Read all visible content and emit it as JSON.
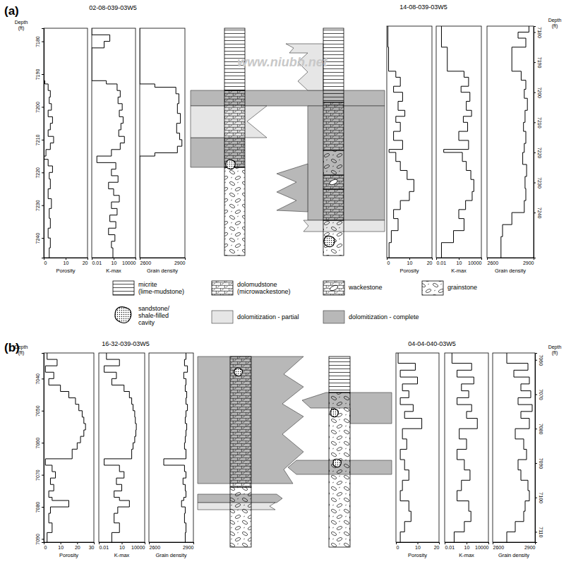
{
  "panels": [
    {
      "label": "(a)",
      "wells": [
        "02-08-039-03W5",
        "14-08-039-03W5"
      ]
    },
    {
      "label": "(b)",
      "wells": [
        "16-32-039-03W5",
        "04-04-040-03W5"
      ]
    }
  ],
  "watermark": "www.niubb.net",
  "legend": [
    {
      "label": [
        "micrite",
        "(lime-mudstone)"
      ]
    },
    {
      "label": [
        "dolomudstone",
        "(microwackestone)"
      ]
    },
    {
      "label": [
        "wackestone"
      ]
    },
    {
      "label": [
        "grainstone"
      ]
    },
    {
      "label": [
        "sandstone/",
        "shale-filled",
        "cavity"
      ]
    },
    {
      "label": [
        "dolomitization - partial"
      ]
    },
    {
      "label": [
        "dolomitization - complete"
      ]
    }
  ],
  "chart_data": [
    {
      "type": "step",
      "xlabel": "Porosity",
      "ylabel": [
        "Depth",
        "(ft)"
      ],
      "x": [
        0.2,
        0.5,
        2,
        3,
        2.5,
        3.5,
        2,
        4,
        3,
        2,
        4.5,
        3,
        1,
        0.2,
        2,
        4,
        2.5,
        3,
        2,
        3.5,
        2.5,
        3,
        2,
        3,
        2.5,
        2.5
      ],
      "y": [
        7176,
        7192,
        7193,
        7195,
        7197,
        7199,
        7201,
        7203,
        7205,
        7207,
        7209,
        7211,
        7213,
        7215,
        7216,
        7218,
        7220,
        7222,
        7225,
        7228,
        7231,
        7234,
        7237,
        7240,
        7243,
        7246
      ],
      "xlim": [
        0,
        20
      ],
      "xticks": [
        0,
        10,
        20
      ],
      "ylim": [
        7176,
        7246
      ],
      "yticks": [
        7180,
        7190,
        7200,
        7210,
        7220,
        7230,
        7240
      ]
    },
    {
      "type": "step",
      "xlabel": "K-max",
      "log": "x",
      "tick_labels": "x",
      "x": [
        0.01,
        3,
        0.5,
        0.01,
        1,
        30,
        80,
        40,
        150,
        60,
        200,
        100,
        50,
        300,
        80,
        5,
        0.05,
        20,
        5,
        40,
        2,
        10,
        60,
        5,
        30,
        3,
        20,
        2,
        15,
        5,
        8,
        8
      ],
      "y": [
        7176,
        7178,
        7180,
        7182,
        7192,
        7193,
        7195,
        7197,
        7199,
        7201,
        7203,
        7205,
        7207,
        7209,
        7211,
        7213,
        7215,
        7217,
        7219,
        7221,
        7223,
        7225,
        7227,
        7229,
        7231,
        7233,
        7235,
        7237,
        7239,
        7241,
        7243,
        7246
      ],
      "xlim": [
        0.01,
        10000
      ],
      "xticks": [
        0.01,
        10,
        10000
      ],
      "ylim": [
        7176,
        7246
      ]
    },
    {
      "type": "step",
      "xlabel": "Grain density",
      "tick_labels": "x",
      "x": [
        2600,
        2700,
        2840,
        2860,
        2850,
        2870,
        2845,
        2865,
        2880,
        2850,
        2700,
        2600,
        2600
      ],
      "y": [
        7176,
        7193,
        7194,
        7196,
        7199,
        7202,
        7205,
        7208,
        7210,
        7212,
        7214,
        7215,
        7246
      ],
      "xlim": [
        2600,
        2900
      ],
      "xticks": [
        2600,
        2900
      ],
      "ylim": [
        7176,
        7246
      ]
    },
    {
      "type": "step",
      "xlabel": "Porosity",
      "tick_labels": "x",
      "x": [
        0.5,
        0.8,
        4,
        6,
        3,
        7,
        5,
        8,
        4,
        6,
        3,
        7,
        1,
        4,
        6,
        9,
        12,
        10,
        6,
        3,
        5,
        2,
        1,
        1
      ],
      "y": [
        7178,
        7185,
        7193,
        7195,
        7198,
        7200,
        7203,
        7206,
        7208,
        7210,
        7213,
        7216,
        7219,
        7220,
        7223,
        7226,
        7229,
        7233,
        7236,
        7239,
        7242,
        7246,
        7250,
        7255
      ],
      "xlim": [
        0,
        20
      ],
      "xticks": [
        0,
        10,
        20
      ],
      "ylim": [
        7178,
        7255
      ]
    },
    {
      "type": "step",
      "xlabel": "K-max",
      "log": "x",
      "tick_labels": "x",
      "x": [
        0.05,
        0.3,
        50,
        200,
        20,
        300,
        100,
        500,
        40,
        150,
        10,
        200,
        0.1,
        30,
        100,
        400,
        1000,
        600,
        80,
        10,
        50,
        2,
        0.05,
        0.05
      ],
      "y": [
        7178,
        7185,
        7193,
        7195,
        7198,
        7200,
        7203,
        7206,
        7208,
        7210,
        7213,
        7216,
        7219,
        7220,
        7223,
        7226,
        7229,
        7233,
        7236,
        7239,
        7242,
        7246,
        7250,
        7255
      ],
      "xlim": [
        0.01,
        10000
      ],
      "xticks": [
        0.01,
        10,
        10000
      ],
      "ylim": [
        7178,
        7255
      ]
    },
    {
      "type": "step",
      "xlabel": "Grain density",
      "ylabel": [
        "Depth",
        "(ft)"
      ],
      "x": [
        2870,
        2800,
        2850,
        2760,
        2820,
        2850,
        2840,
        2860,
        2845,
        2835,
        2850,
        2840,
        2830,
        2855,
        2845,
        2850,
        2840,
        2760,
        2700,
        2690,
        2690
      ],
      "y": [
        7178,
        7180,
        7182,
        7185,
        7193,
        7196,
        7199,
        7202,
        7206,
        7210,
        7213,
        7217,
        7220,
        7224,
        7228,
        7232,
        7236,
        7240,
        7244,
        7248,
        7255
      ],
      "xlim": [
        2600,
        2900
      ],
      "xticks": [
        2600,
        2900
      ],
      "ylim": [
        7178,
        7255
      ],
      "yticks": [
        7180,
        7190,
        7200,
        7210,
        7220,
        7230,
        7240
      ]
    },
    {
      "type": "step",
      "xlabel": "Porosity",
      "ylabel": [
        "Depth",
        "(ft)"
      ],
      "x": [
        2,
        8,
        1,
        6,
        3,
        10,
        15,
        19,
        21,
        23,
        24,
        25,
        24,
        22,
        20,
        17,
        1,
        5,
        7,
        4,
        6,
        3,
        5,
        15,
        4,
        3,
        5,
        2,
        2
      ],
      "y": [
        7032,
        7034,
        7036,
        7038,
        7040,
        7042,
        7044,
        7046,
        7048,
        7050,
        7052,
        7054,
        7056,
        7058,
        7060,
        7062,
        7065,
        7067,
        7069,
        7071,
        7073,
        7075,
        7077,
        7078,
        7080,
        7082,
        7085,
        7088,
        7091
      ],
      "xlim": [
        0,
        30
      ],
      "xticks": [
        0,
        10,
        20,
        30
      ],
      "ylim": [
        7032,
        7091
      ],
      "yticks": [
        7040,
        7050,
        7060,
        7070,
        7080,
        7090
      ]
    },
    {
      "type": "step",
      "xlabel": "K-max",
      "log": "x",
      "tick_labels": "x",
      "x": [
        0.1,
        5,
        0.05,
        2,
        0.5,
        20,
        100,
        200,
        300,
        500,
        600,
        800,
        700,
        500,
        300,
        200,
        0.05,
        5,
        20,
        2,
        10,
        1,
        5,
        100,
        3,
        1,
        5,
        0.5,
        0.5
      ],
      "y": [
        7032,
        7034,
        7036,
        7038,
        7040,
        7042,
        7044,
        7046,
        7048,
        7050,
        7052,
        7054,
        7056,
        7058,
        7060,
        7062,
        7065,
        7067,
        7069,
        7071,
        7073,
        7075,
        7077,
        7078,
        7080,
        7082,
        7085,
        7088,
        7091
      ],
      "xlim": [
        0.01,
        10000
      ],
      "xticks": [
        0.01,
        10,
        10000
      ],
      "ylim": [
        7032,
        7091
      ]
    },
    {
      "type": "step",
      "xlabel": "Grain density",
      "tick_labels": "x",
      "x": [
        2850,
        2840,
        2860,
        2835,
        2850,
        2845,
        2855,
        2850,
        2860,
        2850,
        2845,
        2855,
        2850,
        2845,
        2840,
        2850,
        2700,
        2840,
        2850,
        2830,
        2845,
        2850,
        2835,
        2820,
        2845,
        2840,
        2850,
        2845,
        2845
      ],
      "y": [
        7032,
        7034,
        7036,
        7038,
        7040,
        7042,
        7044,
        7046,
        7048,
        7050,
        7052,
        7054,
        7056,
        7058,
        7060,
        7062,
        7065,
        7067,
        7069,
        7071,
        7073,
        7075,
        7077,
        7078,
        7080,
        7082,
        7085,
        7088,
        7091
      ],
      "xlim": [
        2600,
        2900
      ],
      "xticks": [
        2600,
        2900
      ],
      "ylim": [
        7032,
        7091
      ]
    },
    {
      "type": "step",
      "xlabel": "Porosity",
      "tick_labels": "x",
      "x": [
        1,
        9,
        2,
        10,
        3,
        6,
        2,
        8,
        4,
        12,
        3,
        5,
        2,
        4,
        6,
        3,
        2,
        6,
        7,
        4,
        2,
        2
      ],
      "y": [
        7058,
        7061,
        7063,
        7065,
        7067,
        7069,
        7071,
        7073,
        7075,
        7077,
        7080,
        7083,
        7086,
        7089,
        7092,
        7095,
        7098,
        7101,
        7104,
        7107,
        7110,
        7113
      ],
      "xlim": [
        0,
        20
      ],
      "xticks": [
        0,
        10,
        20
      ],
      "ylim": [
        7058,
        7113
      ]
    },
    {
      "type": "step",
      "xlabel": "K-max",
      "log": "x",
      "tick_labels": "x",
      "x": [
        0.1,
        50,
        0.5,
        100,
        2,
        20,
        0.5,
        50,
        10,
        300,
        1,
        10,
        0.5,
        5,
        30,
        2,
        0.5,
        20,
        40,
        5,
        0.2,
        0.2
      ],
      "y": [
        7058,
        7061,
        7063,
        7065,
        7067,
        7069,
        7071,
        7073,
        7075,
        7077,
        7080,
        7083,
        7086,
        7089,
        7092,
        7095,
        7098,
        7101,
        7104,
        7107,
        7110,
        7113
      ],
      "xlim": [
        0.01,
        10000
      ],
      "xticks": [
        0.01,
        10,
        10000
      ],
      "ylim": [
        7058,
        7113
      ]
    },
    {
      "type": "step",
      "xlabel": "Grain density",
      "ylabel": [
        "Depth",
        "(ft)"
      ],
      "x": [
        2700,
        2850,
        2750,
        2860,
        2800,
        2870,
        2780,
        2880,
        2800,
        2860,
        2760,
        2820,
        2840,
        2780,
        2800,
        2850,
        2860,
        2830,
        2820,
        2760,
        2700,
        2700
      ],
      "y": [
        7058,
        7061,
        7063,
        7065,
        7067,
        7069,
        7071,
        7073,
        7075,
        7077,
        7080,
        7083,
        7086,
        7089,
        7092,
        7095,
        7098,
        7101,
        7104,
        7107,
        7110,
        7113
      ],
      "xlim": [
        2600,
        2900
      ],
      "xticks": [
        2600,
        2900
      ],
      "ylim": [
        7058,
        7113
      ],
      "yticks": [
        7060,
        7070,
        7080,
        7090,
        7100,
        7110
      ]
    }
  ]
}
